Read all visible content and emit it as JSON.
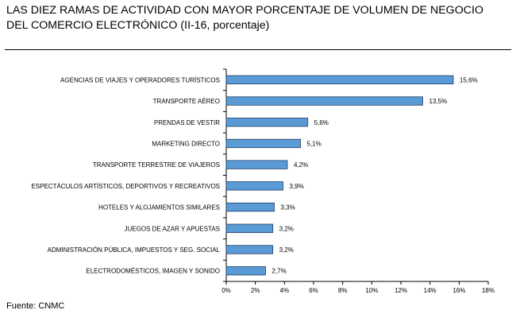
{
  "title": {
    "line1": "LAS DIEZ RAMAS DE ACTIVIDAD CON MAYOR PORCENTAJE DE VOLUMEN DE NEGOCIO",
    "line2": "DEL COMERCIO ELECTRÓNICO (II-16, porcentaje)"
  },
  "source": "Fuente: CNMC",
  "colors": {
    "bar_fill": "#5b9bd5",
    "bar_stroke": "#1f3d66"
  },
  "chart_data": {
    "type": "bar",
    "orientation": "horizontal",
    "categories": [
      "AGENCIAS DE VIAJES Y OPERADORES TURÍSTICOS",
      "TRANSPORTE AÉREO",
      "PRENDAS DE VESTIR",
      "MARKETING DIRECTO",
      "TRANSPORTE TERRESTRE DE VIAJEROS",
      "ESPECTÁCULOS ARTÍSTICOS, DEPORTIVOS Y RECREATIVOS",
      "HOTELES  Y ALOJAMIENTOS SIMILARES",
      "JUEGOS DE AZAR Y APUESTAS",
      "ADMINISTRACIÓN PÚBLICA, IMPUESTOS Y SEG. SOCIAL",
      "ELECTRODOMÉSTICOS,  IMAGEN Y SONIDO"
    ],
    "values": [
      15.6,
      13.5,
      5.6,
      5.1,
      4.2,
      3.9,
      3.3,
      3.2,
      3.2,
      2.7
    ],
    "value_labels": [
      "15,6%",
      "13,5%",
      "5,6%",
      "5,1%",
      "4,2%",
      "3,9%",
      "3,3%",
      "3,2%",
      "3,2%",
      "2,7%"
    ],
    "xlim": [
      0,
      18
    ],
    "x_ticks": [
      "0%",
      "2%",
      "4%",
      "6%",
      "8%",
      "10%",
      "12%",
      "14%",
      "16%",
      "18%"
    ],
    "grid": false,
    "legend": "none"
  }
}
